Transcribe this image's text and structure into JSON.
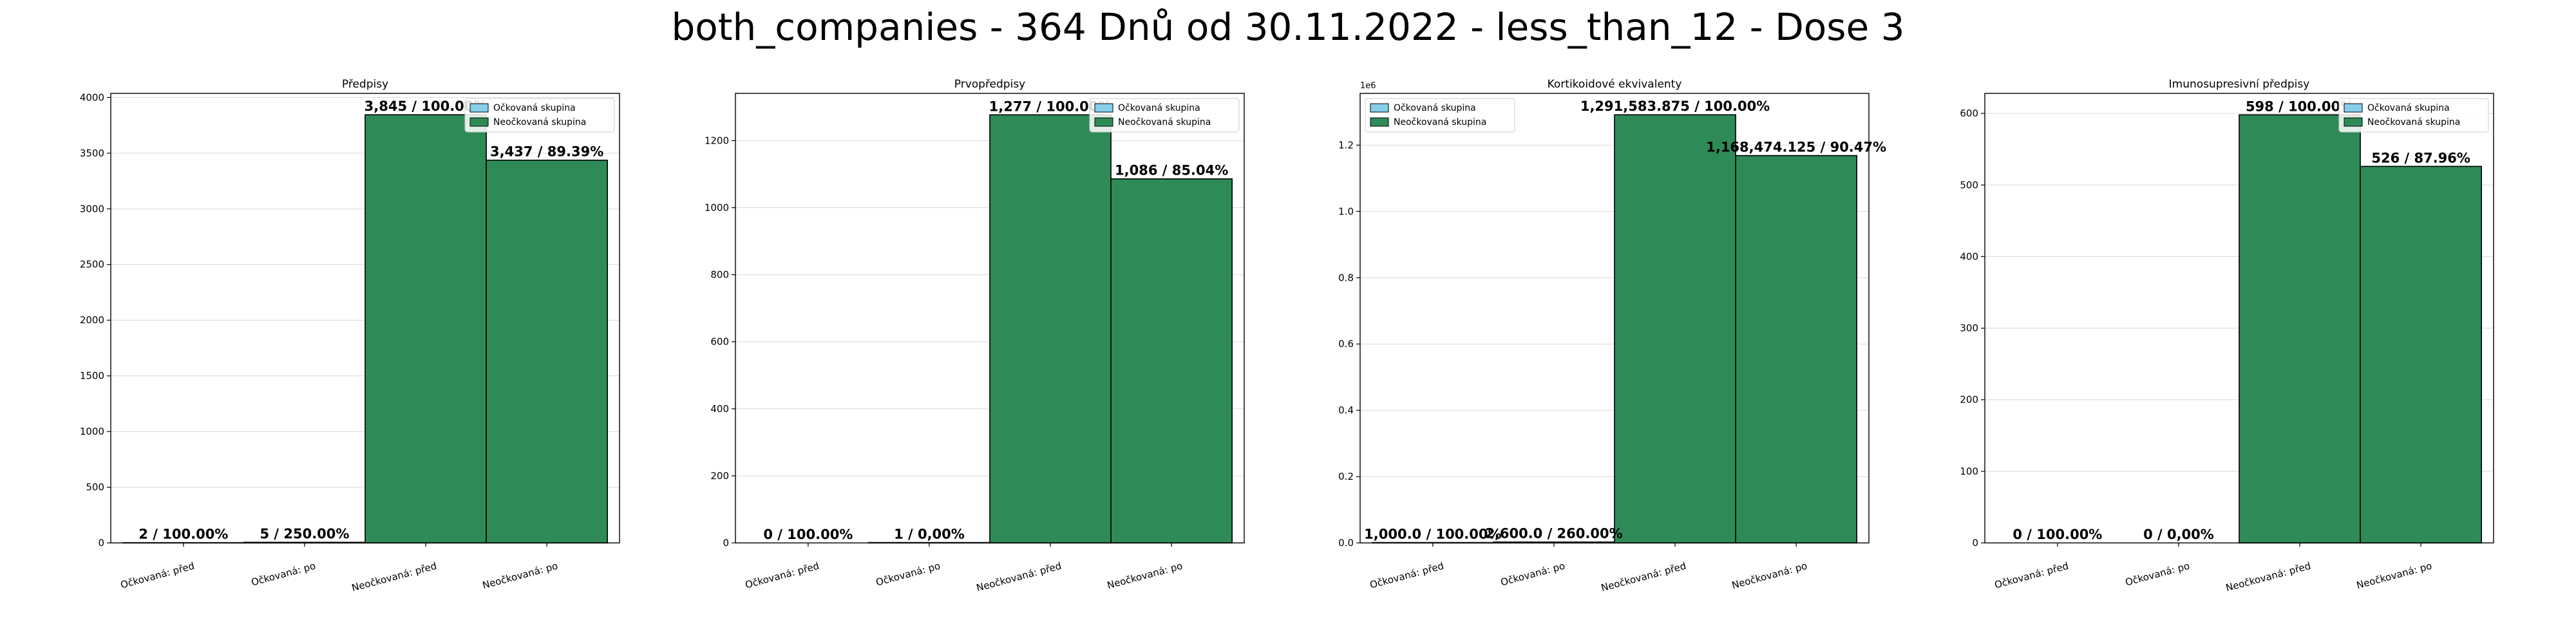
{
  "figure": {
    "suptitle": "both_companies - 364 Dnů od 30.11.2022 - less_than_12 - Dose 3"
  },
  "colors": {
    "vaccinated": "#87ceeb",
    "unvaccinated": "#2e8b57",
    "edge": "#000000",
    "grid": "#d9d9d9"
  },
  "legend": {
    "vaccinated": "Očkovaná skupina",
    "unvaccinated": "Neočkovaná skupina"
  },
  "chart_data": [
    {
      "type": "bar",
      "title": "Předpisy",
      "categories": [
        "Očkovaná: před",
        "Očkovaná: po",
        "Neočkovaná: před",
        "Neočkovaná: po"
      ],
      "groups": [
        "vaccinated",
        "vaccinated",
        "unvaccinated",
        "unvaccinated"
      ],
      "values": [
        2,
        5,
        3845,
        3437
      ],
      "labels": [
        "2 / 100.00%",
        "5 / 250.00%",
        "3,845 / 100.00%",
        "3,437 / 89.39%"
      ],
      "ylim": [
        0,
        4037
      ],
      "yticks": [
        0,
        500,
        1000,
        1500,
        2000,
        2500,
        3000,
        3500,
        4000
      ],
      "ytick_labels": [
        "0",
        "500",
        "1000",
        "1500",
        "2000",
        "2500",
        "3000",
        "3500",
        "4000"
      ],
      "offset_text": "",
      "legend_position": "upper right",
      "grid": "y"
    },
    {
      "type": "bar",
      "title": "Prvopředpisy",
      "categories": [
        "Očkovaná: před",
        "Očkovaná: po",
        "Neočkovaná: před",
        "Neočkovaná: po"
      ],
      "groups": [
        "vaccinated",
        "vaccinated",
        "unvaccinated",
        "unvaccinated"
      ],
      "values": [
        0,
        1,
        1277,
        1086
      ],
      "labels": [
        "0 / 100.00%",
        "1 / 0,00%",
        "1,277 / 100.00%",
        "1,086 / 85.04%"
      ],
      "ylim": [
        0,
        1341
      ],
      "yticks": [
        0,
        200,
        400,
        600,
        800,
        1000,
        1200
      ],
      "ytick_labels": [
        "0",
        "200",
        "400",
        "600",
        "800",
        "1000",
        "1200"
      ],
      "offset_text": "",
      "legend_position": "upper right",
      "grid": "y"
    },
    {
      "type": "bar",
      "title": "Kortikoidové ekvivalenty",
      "categories": [
        "Očkovaná: před",
        "Očkovaná: po",
        "Neočkovaná: před",
        "Neočkovaná: po"
      ],
      "groups": [
        "vaccinated",
        "vaccinated",
        "unvaccinated",
        "unvaccinated"
      ],
      "values": [
        1000.0,
        2600.0,
        1291583.875,
        1168474.125
      ],
      "labels": [
        "1,000.0 / 100.00%",
        "2,600.0 / 260.00%",
        "1,291,583.875 / 100.00%",
        "1,168,474.125 / 90.47%"
      ],
      "ylim": [
        0,
        1356163
      ],
      "yticks": [
        0,
        200000,
        400000,
        600000,
        800000,
        1000000,
        1200000
      ],
      "ytick_labels": [
        "0.0",
        "0.2",
        "0.4",
        "0.6",
        "0.8",
        "1.0",
        "1.2"
      ],
      "offset_text": "1e6",
      "legend_position": "upper left",
      "grid": "y"
    },
    {
      "type": "bar",
      "title": "Imunosupresivní předpisy",
      "categories": [
        "Očkovaná: před",
        "Očkovaná: po",
        "Neočkovaná: před",
        "Neočkovaná: po"
      ],
      "groups": [
        "vaccinated",
        "vaccinated",
        "unvaccinated",
        "unvaccinated"
      ],
      "values": [
        0,
        0,
        598,
        526
      ],
      "labels": [
        "0 / 100.00%",
        "0 / 0,00%",
        "598 / 100.00%",
        "526 / 87.96%"
      ],
      "ylim": [
        0,
        628
      ],
      "yticks": [
        0,
        100,
        200,
        300,
        400,
        500,
        600
      ],
      "ytick_labels": [
        "0",
        "100",
        "200",
        "300",
        "400",
        "500",
        "600"
      ],
      "offset_text": "",
      "legend_position": "upper right",
      "grid": "y"
    }
  ]
}
